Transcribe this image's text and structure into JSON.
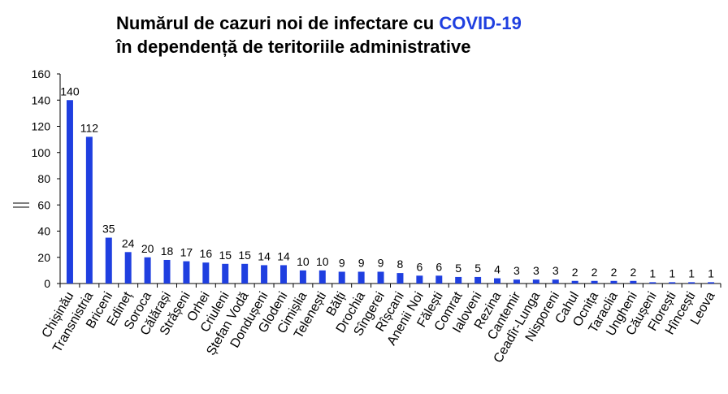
{
  "chart_data": {
    "type": "bar",
    "title_line1_prefix": "Numărul de cazuri noi de infectare cu ",
    "title_line1_highlight": "COVID-19",
    "title_line2": "în dependență de teritoriile administrative",
    "title_highlight_color": "#1f3fe0",
    "bar_color": "#1f3fe0",
    "ylim": [
      0,
      160
    ],
    "yticks": [
      0,
      20,
      40,
      60,
      80,
      100,
      120,
      140,
      160
    ],
    "grid": false,
    "categories": [
      "Chișinău",
      "Transnistria",
      "Briceni",
      "Edineț",
      "Soroca",
      "Călărași",
      "Strășeni",
      "Orhei",
      "Criuleni",
      "Ștefan Vodă",
      "Dondușeni",
      "Glodeni",
      "Cimișlia",
      "Telenești",
      "Bălți",
      "Drochia",
      "Sîngerei",
      "Rîșcani",
      "Anenii Noi",
      "Fălești",
      "Comrat",
      "Ialoveni",
      "Rezina",
      "Cantemir",
      "Ceadîr-Lunga",
      "Nisporeni",
      "Cahul",
      "Ocnița",
      "Taraclia",
      "Ungheni",
      "Căușeni",
      "Florești",
      "Hîncești",
      "Leova"
    ],
    "values": [
      140,
      112,
      35,
      24,
      20,
      18,
      17,
      16,
      15,
      15,
      14,
      14,
      10,
      10,
      9,
      9,
      9,
      8,
      6,
      6,
      5,
      5,
      4,
      3,
      3,
      3,
      2,
      2,
      2,
      2,
      1,
      1,
      1,
      1
    ]
  }
}
